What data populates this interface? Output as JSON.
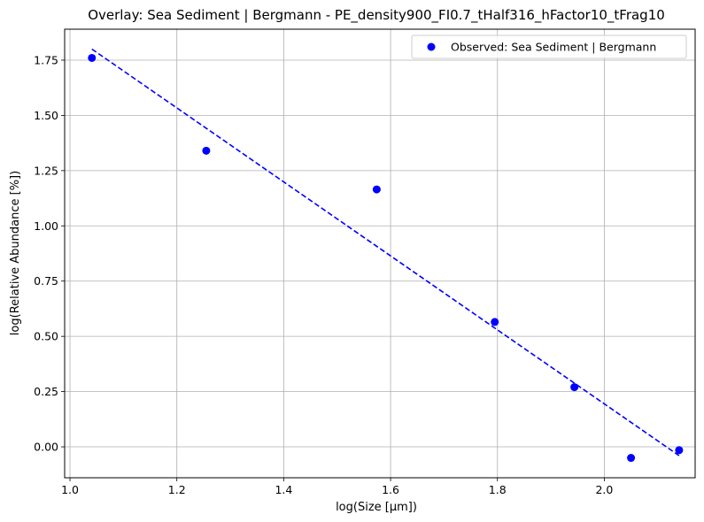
{
  "chart_data": {
    "type": "scatter",
    "title": "Overlay: Sea Sediment | Bergmann - PE_density900_FI0.7_tHalf316_hFactor10_tFrag10",
    "xlabel": "log(Size [μm])",
    "ylabel": "log(Relative Abundance [%])",
    "xlim": [
      0.99,
      2.17
    ],
    "ylim": [
      -0.14,
      1.89
    ],
    "x_ticks": [
      1.0,
      1.2,
      1.4,
      1.6,
      1.8,
      2.0
    ],
    "x_tick_labels": [
      "1.0",
      "1.2",
      "1.4",
      "1.6",
      "1.8",
      "2.0"
    ],
    "y_ticks": [
      0.0,
      0.25,
      0.5,
      0.75,
      1.0,
      1.25,
      1.5,
      1.75
    ],
    "y_tick_labels": [
      "0.00",
      "0.25",
      "0.50",
      "0.75",
      "1.00",
      "1.25",
      "1.50",
      "1.75"
    ],
    "grid": true,
    "legend_position": "top-right",
    "series": [
      {
        "name": "Observed: Sea Sediment | Bergmann",
        "kind": "scatter",
        "color": "#0000ff",
        "points": [
          {
            "x": 1.041,
            "y": 1.76
          },
          {
            "x": 1.255,
            "y": 1.34
          },
          {
            "x": 1.574,
            "y": 1.165
          },
          {
            "x": 1.795,
            "y": 0.565
          },
          {
            "x": 1.944,
            "y": 0.27
          },
          {
            "x": 2.05,
            "y": -0.05
          },
          {
            "x": 2.14,
            "y": -0.015
          }
        ]
      },
      {
        "kind": "line",
        "style": "dashed",
        "color": "#0000ff",
        "points": [
          {
            "x": 1.041,
            "y": 1.8
          },
          {
            "x": 2.14,
            "y": -0.04
          }
        ]
      }
    ]
  }
}
